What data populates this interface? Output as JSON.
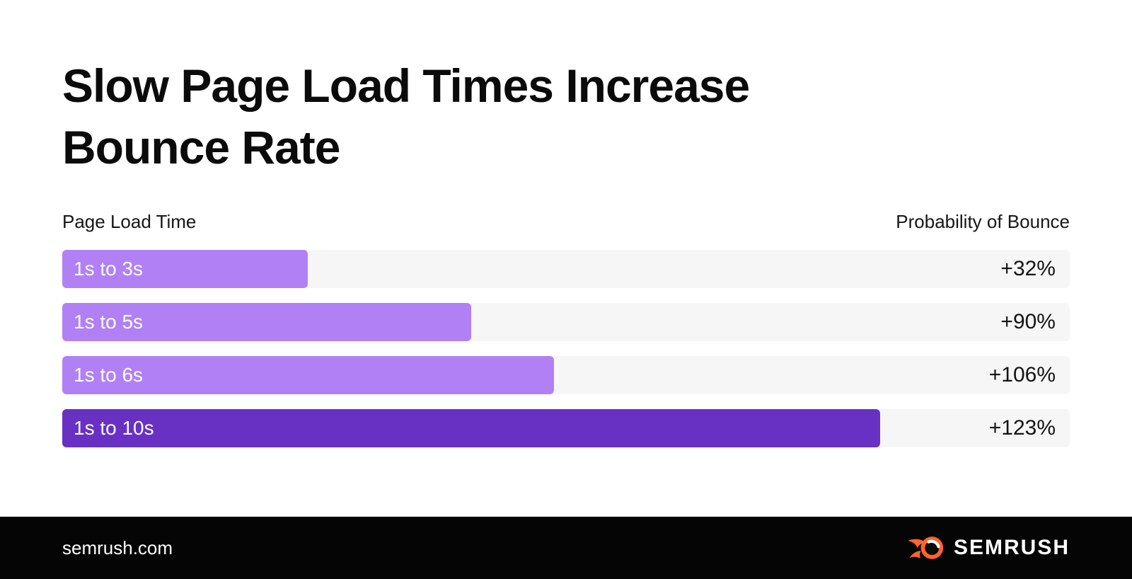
{
  "header": {
    "title_line1": "Slow Page Load Times Increase",
    "title_line2": "Bounce Rate"
  },
  "chart_data": {
    "type": "bar",
    "orientation": "horizontal",
    "title": "Slow Page Load Times Increase Bounce Rate",
    "category_axis_label": "Page Load Time",
    "value_axis_label": "Probability of Bounce",
    "categories": [
      "1s to 3s",
      "1s to 5s",
      "1s to 6s",
      "1s to 10s"
    ],
    "values": [
      32,
      90,
      106,
      123
    ],
    "value_labels": [
      "+32%",
      "+90%",
      "+106%",
      "+123%"
    ],
    "bar_width_pct_of_track": [
      24.4,
      40.6,
      48.8,
      81.2
    ],
    "bar_colors": [
      "#B180F5",
      "#B180F5",
      "#B180F5",
      "#6930C4"
    ],
    "track_color": "#F6F6F6",
    "grid": false,
    "legend": false
  },
  "footer": {
    "website": "semrush.com",
    "logo_text": "SEMRUSH"
  },
  "colors": {
    "background": "#FFFFFF",
    "title_text": "#0B0B0B",
    "axis_label_text": "#161616",
    "value_text": "#141414",
    "bar_label_text": "#FFFFFF",
    "accent_light_purple": "#B180F5",
    "accent_dark_purple": "#6930C4",
    "bar_track": "#F6F6F6",
    "footer_background": "#050505",
    "logo_orange": "#FF642D"
  }
}
